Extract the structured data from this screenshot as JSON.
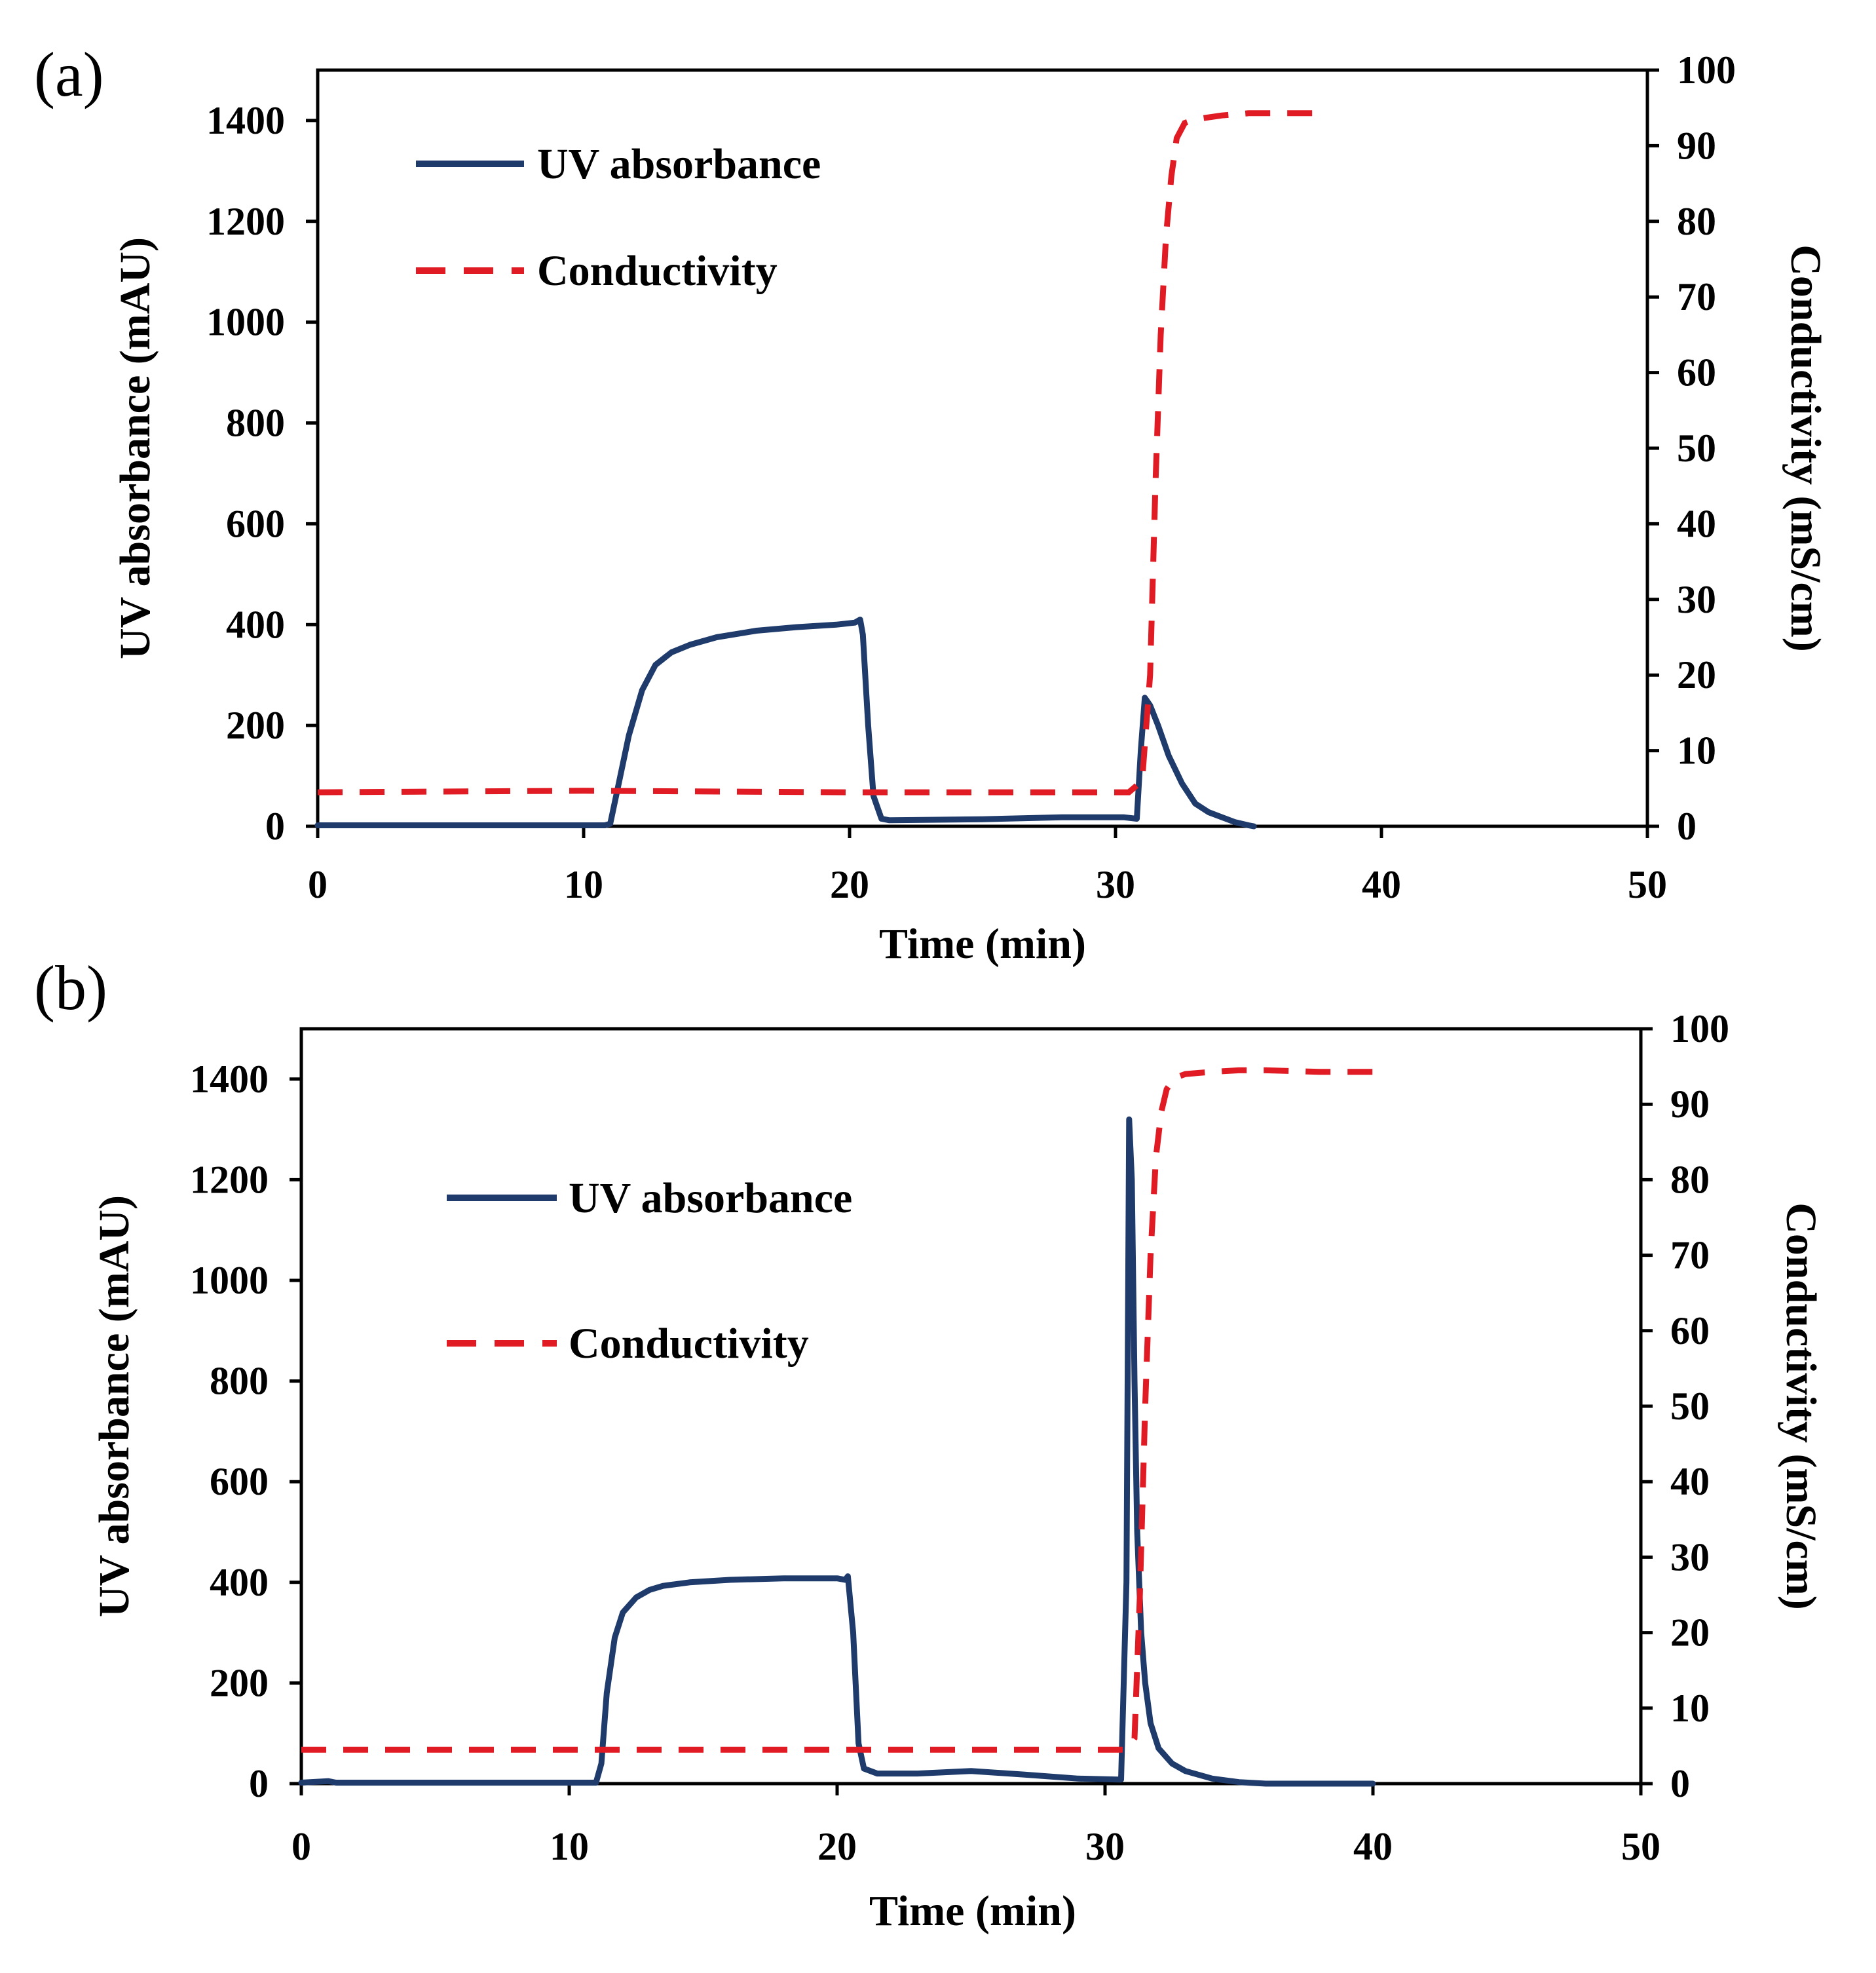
{
  "colors": {
    "uv": "#1f3b6b",
    "conductivity": "#e01b24",
    "axis": "#000000"
  },
  "chart_data": [
    {
      "type": "line",
      "panel_label": "(a)",
      "xlabel": "Time (min)",
      "ylabel": "UV absorbance (mAU)",
      "y2label": "Conductivity (mS/cm)",
      "xlim": [
        0,
        50
      ],
      "ylim": [
        0,
        1500
      ],
      "y2lim": [
        0,
        100
      ],
      "xticks": [
        "0",
        "10",
        "20",
        "30",
        "40",
        "50"
      ],
      "yticks": [
        "0",
        "200",
        "400",
        "600",
        "800",
        "1000",
        "1200",
        "1400"
      ],
      "y2ticks": [
        "0",
        "10",
        "20",
        "30",
        "40",
        "50",
        "60",
        "70",
        "80",
        "90",
        "100"
      ],
      "grid": false,
      "legend": "upper-left",
      "series": [
        {
          "name": "UV absorbance",
          "axis": "left",
          "style": "solid",
          "x": [
            0,
            10.8,
            11.0,
            11.3,
            11.7,
            12.2,
            12.7,
            13.3,
            14.0,
            15.0,
            16.5,
            18.0,
            19.5,
            20.2,
            20.4,
            20.5,
            20.7,
            20.9,
            21.2,
            21.5,
            25,
            28,
            30.3,
            30.8,
            30.95,
            31.1,
            31.3,
            31.6,
            32.0,
            32.5,
            33.0,
            33.5,
            34.0,
            34.5,
            35.0,
            35.2
          ],
          "y": [
            2,
            2,
            5,
            80,
            180,
            270,
            320,
            345,
            360,
            375,
            388,
            395,
            400,
            404,
            410,
            380,
            200,
            60,
            15,
            12,
            14,
            18,
            18,
            15,
            150,
            255,
            240,
            200,
            140,
            85,
            45,
            28,
            18,
            8,
            2,
            0
          ]
        },
        {
          "name": "Conductivity",
          "axis": "right",
          "style": "dashed",
          "x": [
            0,
            10,
            20,
            30.5,
            31.0,
            31.3,
            31.5,
            31.7,
            31.9,
            32.1,
            32.3,
            32.6,
            33.0,
            34.0,
            35.0,
            36.0,
            37.0,
            38.0
          ],
          "y": [
            4.5,
            4.7,
            4.5,
            4.5,
            6,
            20,
            45,
            65,
            78,
            86,
            91,
            93,
            93.5,
            94,
            94.3,
            94.3,
            94.3,
            94.3
          ]
        }
      ]
    },
    {
      "type": "line",
      "panel_label": "(b)",
      "xlabel": "Time (min)",
      "ylabel": "UV absorbance (mAU)",
      "y2label": "Conductivity (mS/cm)",
      "xlim": [
        0,
        50
      ],
      "ylim": [
        0,
        1500
      ],
      "y2lim": [
        0,
        100
      ],
      "xticks": [
        "0",
        "10",
        "20",
        "30",
        "40",
        "50"
      ],
      "yticks": [
        "0",
        "200",
        "400",
        "600",
        "800",
        "1000",
        "1200",
        "1400"
      ],
      "y2ticks": [
        "0",
        "10",
        "20",
        "30",
        "40",
        "50",
        "60",
        "70",
        "80",
        "90",
        "100"
      ],
      "grid": false,
      "legend": "upper-left",
      "series": [
        {
          "name": "UV absorbance",
          "axis": "left",
          "style": "solid",
          "x": [
            0,
            1.0,
            1.3,
            11.0,
            11.2,
            11.4,
            11.7,
            12.0,
            12.5,
            13.0,
            13.5,
            14.5,
            16.0,
            18.0,
            20.0,
            20.3,
            20.4,
            20.6,
            20.8,
            21.0,
            21.5,
            23,
            25,
            27,
            29,
            30.6,
            30.8,
            30.9,
            31.0,
            31.1,
            31.2,
            31.35,
            31.5,
            31.7,
            32.0,
            32.5,
            33.0,
            34.0,
            35.0,
            36.0,
            40.0
          ],
          "y": [
            2,
            5,
            2,
            2,
            40,
            180,
            290,
            340,
            370,
            385,
            393,
            400,
            405,
            408,
            408,
            405,
            412,
            300,
            80,
            30,
            20,
            20,
            25,
            18,
            10,
            8,
            400,
            1320,
            1200,
            800,
            500,
            300,
            200,
            120,
            70,
            40,
            25,
            10,
            3,
            0,
            0
          ]
        },
        {
          "name": "Conductivity",
          "axis": "right",
          "style": "dashed",
          "x": [
            0,
            10,
            20,
            30.8,
            31.1,
            31.3,
            31.5,
            31.7,
            31.9,
            32.1,
            32.3,
            32.6,
            33.0,
            34.0,
            35.0,
            36.0,
            37.0,
            38.0,
            39.0,
            40.0
          ],
          "y": [
            4.5,
            4.5,
            4.5,
            4.5,
            6,
            25,
            50,
            70,
            83,
            89,
            92,
            93.5,
            94,
            94.3,
            94.5,
            94.5,
            94.4,
            94.3,
            94.3,
            94.3
          ]
        }
      ]
    }
  ]
}
